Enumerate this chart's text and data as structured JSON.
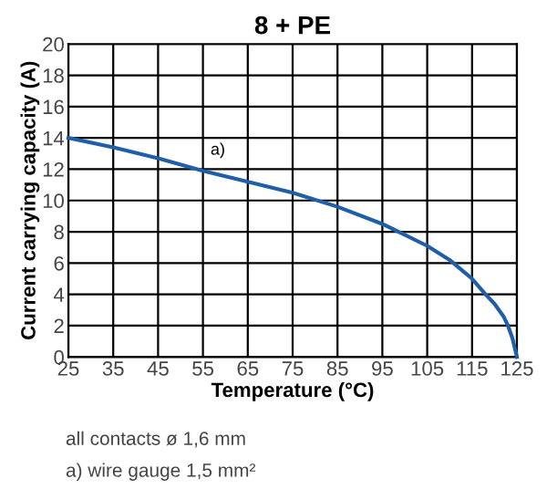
{
  "chart_data": {
    "type": "line",
    "title": "8 + PE",
    "xlabel": "Temperature (°C)",
    "ylabel": "Current carrying capacity (A)",
    "x": [
      25,
      35,
      45,
      55,
      65,
      75,
      85,
      95,
      100,
      105,
      110,
      115,
      118,
      120,
      122,
      123,
      124,
      125
    ],
    "series": [
      {
        "color": "#1f5fa8",
        "values": [
          14,
          13.4,
          12.7,
          11.9,
          11.2,
          10.5,
          9.6,
          8.5,
          7.8,
          7.1,
          6.2,
          5.0,
          4.0,
          3.4,
          2.6,
          2.0,
          1.2,
          0
        ]
      }
    ],
    "xlim": [
      25,
      125
    ],
    "ylim": [
      0,
      20
    ],
    "xticks": [
      25,
      35,
      45,
      55,
      65,
      75,
      85,
      95,
      105,
      115,
      125
    ],
    "yticks": [
      0,
      2,
      4,
      6,
      8,
      10,
      12,
      14,
      16,
      18,
      20
    ],
    "grid": true,
    "legend": false,
    "marker": "none",
    "line_style": "solid",
    "annotations": [
      {
        "text": "a)",
        "x": 55,
        "y": 11.9
      },
      "all contacts ø 1,6 mm",
      "a) wire gauge 1,5 mm²"
    ]
  }
}
